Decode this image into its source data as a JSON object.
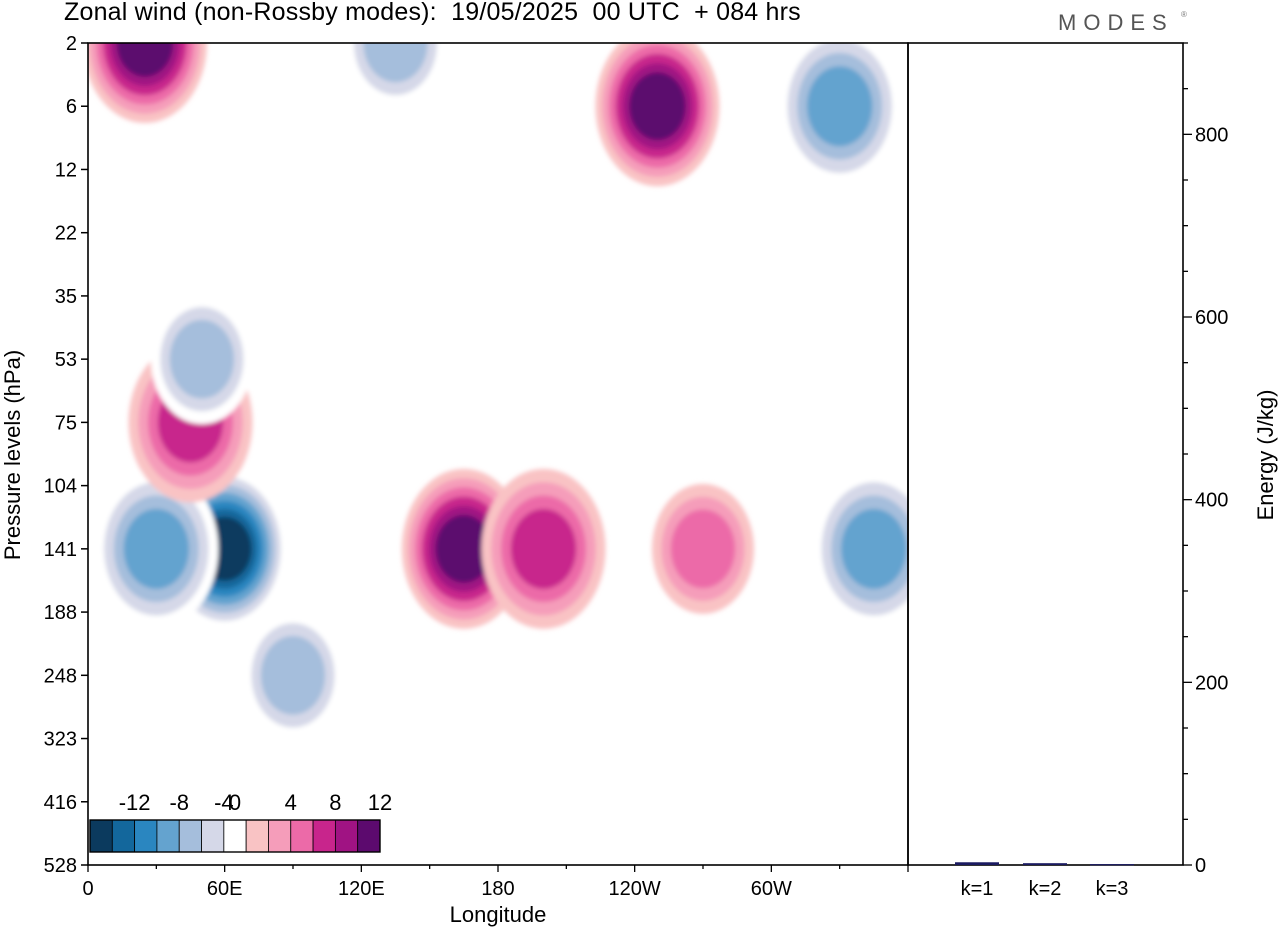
{
  "title": "Zonal wind (non-Rossby modes):  19/05/2025  00 UTC  + 084 hrs",
  "brand": "MODES",
  "brand_mark": "®",
  "chart_data": [
    {
      "type": "heatmap",
      "xlabel": "Longitude",
      "ylabel": "Pressure levels (hPa)",
      "x_ticks": [
        "0",
        "60E",
        "120E",
        "180",
        "120W",
        "60W"
      ],
      "x_tick_degrees": [
        0,
        60,
        120,
        180,
        240,
        300
      ],
      "xlim": [
        0,
        360
      ],
      "y_ticks": [
        "2",
        "6",
        "12",
        "22",
        "35",
        "53",
        "75",
        "104",
        "141",
        "188",
        "248",
        "323",
        "416",
        "528"
      ],
      "colorbar": {
        "labels": [
          "-12",
          "-8",
          "-4",
          "0",
          "4",
          "8",
          "12"
        ],
        "label_values": [
          -12,
          -8,
          -4,
          0,
          4,
          8,
          12
        ],
        "levels": [
          -14,
          -12,
          -10,
          -8,
          -6,
          -4,
          -2,
          2,
          4,
          6,
          8,
          10,
          12,
          14
        ],
        "colors": [
          "#0b3a5e",
          "#13679c",
          "#2a86c0",
          "#64a3cf",
          "#a5bedc",
          "#d5d8e8",
          "#ffffff",
          "#f9c3c4",
          "#f59dba",
          "#ec6aa8",
          "#c8258c",
          "#a01383",
          "#5c0a6e"
        ]
      },
      "features": [
        {
          "lon": 60,
          "level": "141",
          "value": -14
        },
        {
          "lon": 30,
          "level": "141",
          "value": -8
        },
        {
          "lon": 90,
          "level": "248",
          "value": -6
        },
        {
          "lon": 165,
          "level": "141",
          "value": 12
        },
        {
          "lon": 200,
          "level": "141",
          "value": 8
        },
        {
          "lon": 270,
          "level": "141",
          "value": 6
        },
        {
          "lon": 345,
          "level": "141",
          "value": -8
        },
        {
          "lon": 250,
          "level": "6",
          "value": 12
        },
        {
          "lon": 25,
          "level": "2",
          "value": 12
        },
        {
          "lon": 330,
          "level": "6",
          "value": -8
        },
        {
          "lon": 45,
          "level": "75",
          "value": 8
        },
        {
          "lon": 50,
          "level": "53",
          "value": -6
        },
        {
          "lon": 135,
          "level": "2",
          "value": -6
        }
      ]
    },
    {
      "type": "bar",
      "categories": [
        "k=1",
        "k=2",
        "k=3"
      ],
      "values": [
        3,
        2,
        1
      ],
      "ylabel": "Energy (J/kg)",
      "ylim": [
        0,
        900
      ],
      "y_ticks": [
        0,
        200,
        400,
        600,
        800
      ],
      "bar_color": "#1a1a60"
    }
  ]
}
